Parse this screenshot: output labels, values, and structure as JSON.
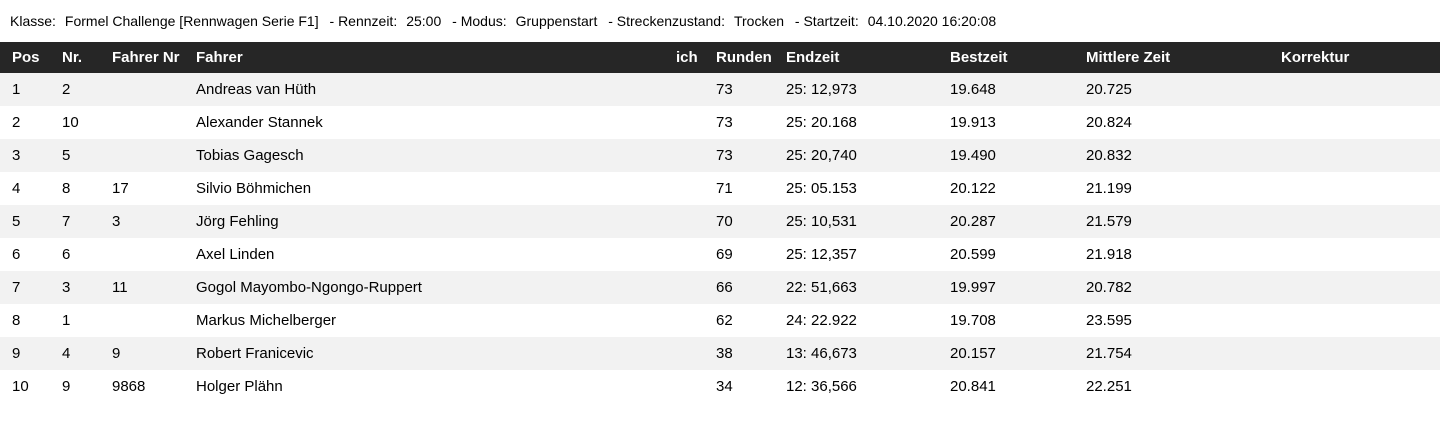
{
  "meta": {
    "fields": [
      {
        "label": "Klasse:",
        "value": "Formel Challenge [Rennwagen Serie F1]"
      },
      {
        "label": "- Rennzeit:",
        "value": "25:00"
      },
      {
        "label": "- Modus:",
        "value": "Gruppenstart"
      },
      {
        "label": "- Streckenzustand:",
        "value": "Trocken"
      },
      {
        "label": "- Startzeit:",
        "value": "04.10.2020 16:20:08"
      }
    ]
  },
  "table": {
    "columns": [
      "Pos",
      "Nr.",
      "Fahrer Nr",
      "Fahrer",
      "ich",
      "Runden",
      "Endzeit",
      "Bestzeit",
      "Mittlere Zeit",
      "Korrektur"
    ],
    "rows": [
      {
        "pos": "1",
        "nr": "2",
        "fahrer_nr": "",
        "fahrer": "Andreas van Hüth",
        "ich": "",
        "runden": "73",
        "endzeit": "25: 12,973",
        "bestzeit": "19.648",
        "mittlere_zeit": "20.725",
        "korrektur": ""
      },
      {
        "pos": "2",
        "nr": "10",
        "fahrer_nr": "",
        "fahrer": "Alexander Stannek",
        "ich": "",
        "runden": "73",
        "endzeit": "25: 20.168",
        "bestzeit": "19.913",
        "mittlere_zeit": "20.824",
        "korrektur": ""
      },
      {
        "pos": "3",
        "nr": "5",
        "fahrer_nr": "",
        "fahrer": "Tobias Gagesch",
        "ich": "",
        "runden": "73",
        "endzeit": "25: 20,740",
        "bestzeit": "19.490",
        "mittlere_zeit": "20.832",
        "korrektur": ""
      },
      {
        "pos": "4",
        "nr": "8",
        "fahrer_nr": "17",
        "fahrer": "Silvio Böhmichen",
        "ich": "",
        "runden": "71",
        "endzeit": "25: 05.153",
        "bestzeit": "20.122",
        "mittlere_zeit": "21.199",
        "korrektur": ""
      },
      {
        "pos": "5",
        "nr": "7",
        "fahrer_nr": "3",
        "fahrer": "Jörg Fehling",
        "ich": "",
        "runden": "70",
        "endzeit": "25: 10,531",
        "bestzeit": "20.287",
        "mittlere_zeit": "21.579",
        "korrektur": ""
      },
      {
        "pos": "6",
        "nr": "6",
        "fahrer_nr": "",
        "fahrer": "Axel Linden",
        "ich": "",
        "runden": "69",
        "endzeit": "25: 12,357",
        "bestzeit": "20.599",
        "mittlere_zeit": "21.918",
        "korrektur": ""
      },
      {
        "pos": "7",
        "nr": "3",
        "fahrer_nr": "11",
        "fahrer": "Gogol Mayombo-Ngongo-Ruppert",
        "ich": "",
        "runden": "66",
        "endzeit": "22: 51,663",
        "bestzeit": "19.997",
        "mittlere_zeit": "20.782",
        "korrektur": ""
      },
      {
        "pos": "8",
        "nr": "1",
        "fahrer_nr": "",
        "fahrer": "Markus Michelberger",
        "ich": "",
        "runden": "62",
        "endzeit": "24: 22.922",
        "bestzeit": "19.708",
        "mittlere_zeit": "23.595",
        "korrektur": ""
      },
      {
        "pos": "9",
        "nr": "4",
        "fahrer_nr": "9",
        "fahrer": "Robert Franicevic",
        "ich": "",
        "runden": "38",
        "endzeit": "13: 46,673",
        "bestzeit": "20.157",
        "mittlere_zeit": "21.754",
        "korrektur": ""
      },
      {
        "pos": "10",
        "nr": "9",
        "fahrer_nr": "9868",
        "fahrer": "Holger Plähn",
        "ich": "",
        "runden": "34",
        "endzeit": "12: 36,566",
        "bestzeit": "20.841",
        "mittlere_zeit": "22.251",
        "korrektur": ""
      }
    ]
  }
}
